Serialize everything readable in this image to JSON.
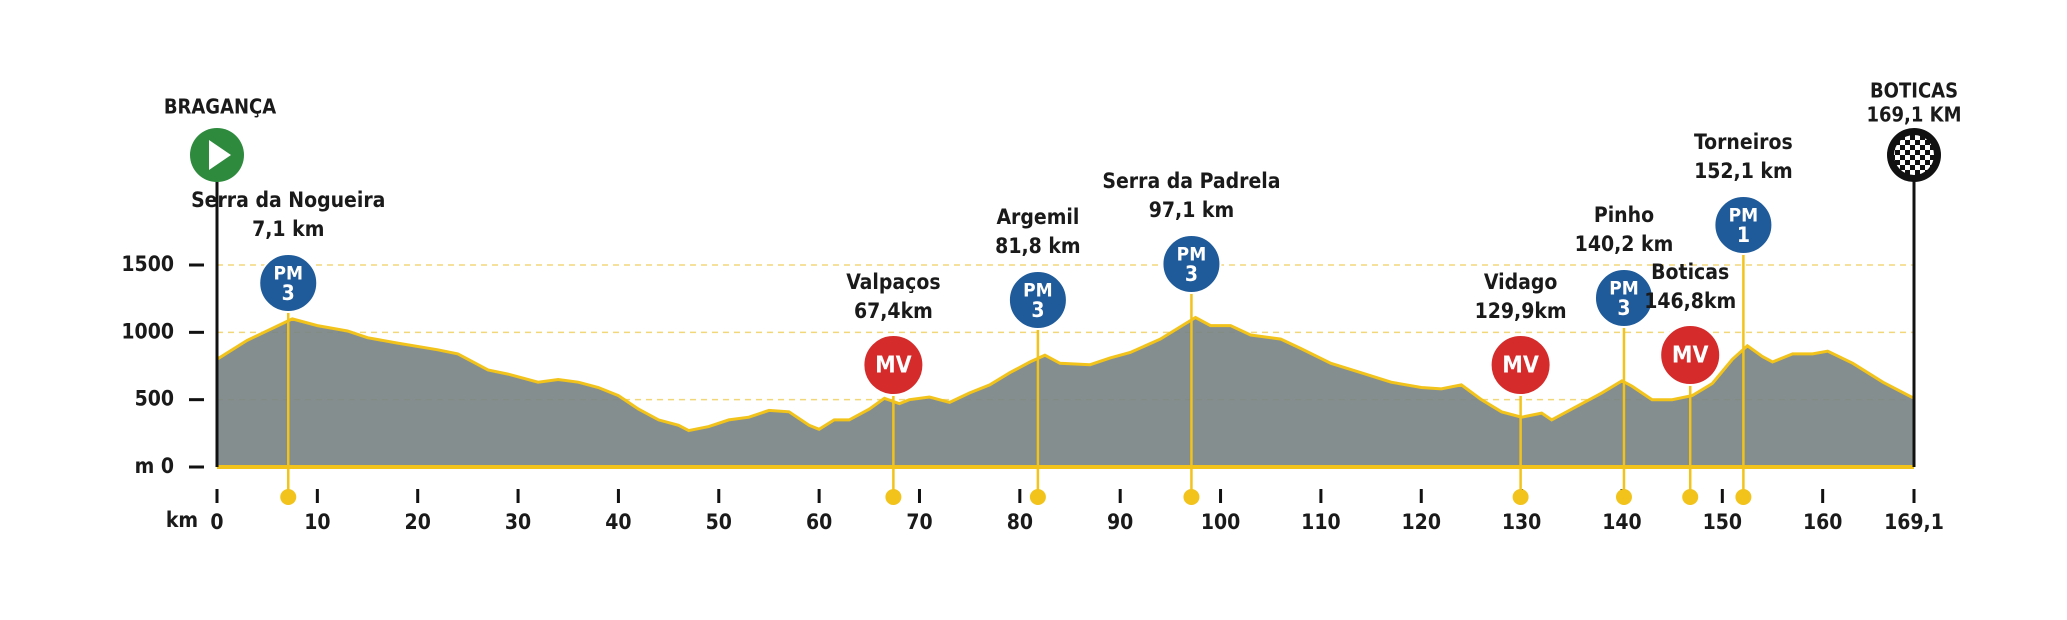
{
  "chart_data": {
    "type": "area",
    "x": [
      0,
      3,
      7.5,
      10,
      13,
      15,
      18,
      22,
      24,
      27,
      29,
      32,
      34,
      36,
      38,
      40,
      42,
      44,
      46,
      47,
      49,
      51,
      53,
      55,
      57,
      59,
      60,
      61.5,
      63,
      65,
      66.5,
      68,
      69,
      71,
      73,
      75,
      77,
      79,
      81,
      82.5,
      84,
      87,
      89,
      91,
      94,
      97.5,
      99,
      101,
      103,
      106,
      108,
      111,
      114,
      117,
      120,
      122,
      124,
      126,
      128,
      130,
      132,
      133,
      135,
      138,
      140,
      141,
      143,
      145,
      147,
      149,
      151,
      152.5,
      154,
      155,
      157,
      159,
      160.5,
      163,
      166,
      169.1
    ],
    "values": [
      800,
      940,
      1100,
      1050,
      1010,
      960,
      920,
      870,
      840,
      720,
      690,
      630,
      650,
      630,
      590,
      530,
      430,
      350,
      310,
      270,
      300,
      350,
      370,
      420,
      410,
      310,
      280,
      350,
      350,
      430,
      510,
      470,
      500,
      520,
      480,
      550,
      610,
      700,
      780,
      830,
      770,
      760,
      810,
      850,
      950,
      1110,
      1050,
      1050,
      980,
      950,
      880,
      770,
      700,
      630,
      590,
      580,
      610,
      500,
      410,
      370,
      400,
      350,
      430,
      550,
      640,
      600,
      500,
      500,
      530,
      620,
      800,
      900,
      820,
      780,
      840,
      840,
      860,
      770,
      630,
      510
    ],
    "color": "#7a8485",
    "line_color": "#f2c31b",
    "xlim": [
      0,
      169.1
    ],
    "xticks": [
      0,
      10,
      20,
      30,
      40,
      50,
      60,
      70,
      80,
      90,
      100,
      110,
      120,
      130,
      140,
      150,
      160,
      {
        "value": 169.1,
        "label": "169,1"
      }
    ],
    "x_label": "km",
    "ylim": [
      0,
      1500
    ],
    "yticks": [
      {
        "value": 0,
        "label": "m 0"
      },
      500,
      1000,
      1500
    ],
    "grid": true,
    "start": {
      "name": "BRAGANÇA"
    },
    "finish": {
      "name": "BOTICAS",
      "km": {
        "value": 169.1,
        "label": "169,1 KM"
      }
    },
    "points": [
      {
        "name": "Serra da Nogueira",
        "x": {
          "value": 7.1,
          "label": "7,1 km"
        },
        "badge": "PM",
        "category": 3
      },
      {
        "name": "Valpaços",
        "x": {
          "value": 67.4,
          "label": "67,4km"
        },
        "badge": "MV"
      },
      {
        "name": "Argemil",
        "x": {
          "value": 81.8,
          "label": "81,8 km"
        },
        "badge": "PM",
        "category": 3
      },
      {
        "name": "Serra da Padrela",
        "x": {
          "value": 97.1,
          "label": "97,1 km"
        },
        "badge": "PM",
        "category": 3
      },
      {
        "name": "Vidago",
        "x": {
          "value": 129.9,
          "label": "129,9km"
        },
        "badge": "MV"
      },
      {
        "name": "Pinho",
        "x": {
          "value": 140.2,
          "label": "140,2 km"
        },
        "badge": "PM",
        "category": 3
      },
      {
        "name": "Boticas",
        "x": {
          "value": 146.8,
          "label": "146,8km"
        },
        "badge": "MV"
      },
      {
        "name": "Torneiros",
        "x": {
          "value": 152.1,
          "label": "152,1 km"
        },
        "badge": "PM",
        "category": 1
      }
    ]
  }
}
